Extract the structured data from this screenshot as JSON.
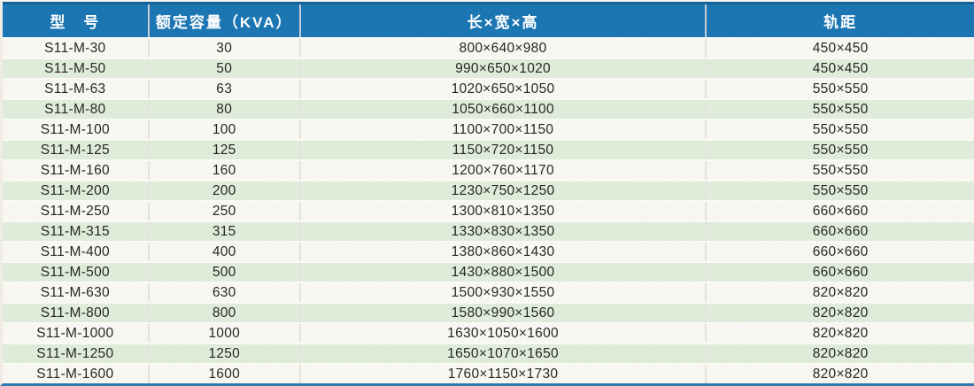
{
  "table": {
    "headers": [
      "型　号",
      "额定容量（KVA）",
      "长×宽×高",
      "轨距"
    ],
    "rows": [
      {
        "model": "S11-M-30",
        "capacity": "30",
        "dimensions": "800×640×980",
        "gauge": "450×450"
      },
      {
        "model": "S11-M-50",
        "capacity": "50",
        "dimensions": "990×650×1020",
        "gauge": "450×450"
      },
      {
        "model": "S11-M-63",
        "capacity": "63",
        "dimensions": "1020×650×1050",
        "gauge": "550×550"
      },
      {
        "model": "S11-M-80",
        "capacity": "80",
        "dimensions": "1050×660×1100",
        "gauge": "550×550"
      },
      {
        "model": "S11-M-100",
        "capacity": "100",
        "dimensions": "1100×700×1150",
        "gauge": "550×550"
      },
      {
        "model": "S11-M-125",
        "capacity": "125",
        "dimensions": "1150×720×1150",
        "gauge": "550×550"
      },
      {
        "model": "S11-M-160",
        "capacity": "160",
        "dimensions": "1200×760×1170",
        "gauge": "550×550"
      },
      {
        "model": "S11-M-200",
        "capacity": "200",
        "dimensions": "1230×750×1250",
        "gauge": "550×550"
      },
      {
        "model": "S11-M-250",
        "capacity": "250",
        "dimensions": "1300×810×1350",
        "gauge": "660×660"
      },
      {
        "model": "S11-M-315",
        "capacity": "315",
        "dimensions": "1330×830×1350",
        "gauge": "660×660"
      },
      {
        "model": "S11-M-400",
        "capacity": "400",
        "dimensions": "1380×860×1430",
        "gauge": "660×660"
      },
      {
        "model": "S11-M-500",
        "capacity": "500",
        "dimensions": "1430×880×1500",
        "gauge": "660×660"
      },
      {
        "model": "S11-M-630",
        "capacity": "630",
        "dimensions": "1500×930×1550",
        "gauge": "820×820"
      },
      {
        "model": "S11-M-800",
        "capacity": "800",
        "dimensions": "1580×990×1560",
        "gauge": "820×820"
      },
      {
        "model": "S11-M-1000",
        "capacity": "1000",
        "dimensions": "1630×1050×1600",
        "gauge": "820×820"
      },
      {
        "model": "S11-M-1250",
        "capacity": "1250",
        "dimensions": "1650×1070×1650",
        "gauge": "820×820"
      },
      {
        "model": "S11-M-1600",
        "capacity": "1600",
        "dimensions": "1760×1150×1730",
        "gauge": "820×820"
      }
    ]
  },
  "colors": {
    "header_bg": "#1371b0",
    "header_top_edge": "#0e5d94",
    "row_base": "#f8f7f2",
    "row_alt": "#dfecd9",
    "text": "#1d1d1b",
    "bottom_edge": "#2d7ab3"
  }
}
